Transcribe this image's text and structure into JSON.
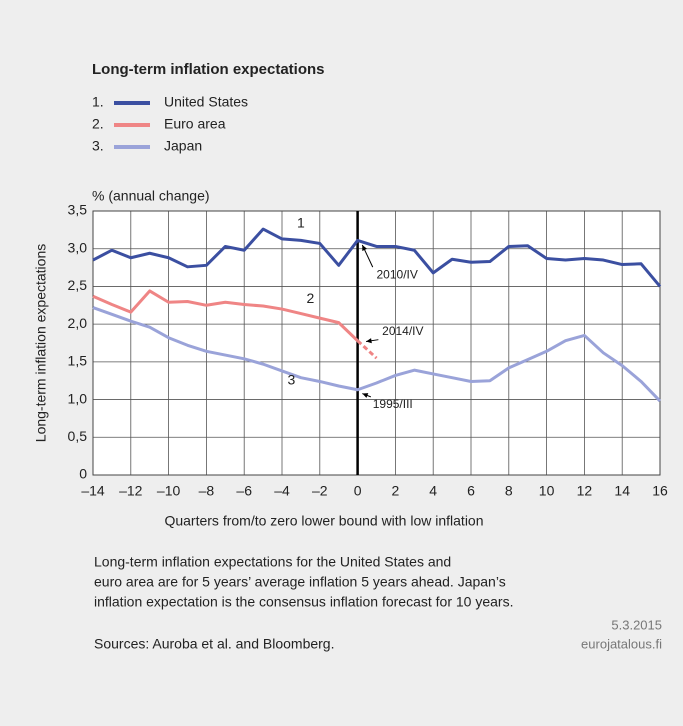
{
  "chart_data": {
    "type": "line",
    "title": "Long-term inflation expectations",
    "unit_label": "% (annual change)",
    "ylabel": "Long-term inflation expectations",
    "xlabel": "Quarters from/to zero lower bound with low inflation",
    "x": [
      -14,
      -13,
      -12,
      -11,
      -10,
      -9,
      -8,
      -7,
      -6,
      -5,
      -4,
      -3,
      -2,
      -1,
      0,
      1,
      2,
      3,
      4,
      5,
      6,
      7,
      8,
      9,
      10,
      11,
      12,
      13,
      14,
      15,
      16
    ],
    "series": [
      {
        "name": "United States",
        "number": "1.",
        "color": "#3b4fa1",
        "values": [
          2.85,
          2.98,
          2.88,
          2.94,
          2.88,
          2.76,
          2.78,
          3.03,
          2.98,
          3.26,
          3.13,
          3.11,
          3.07,
          2.78,
          3.11,
          3.03,
          3.03,
          2.98,
          2.68,
          2.86,
          2.82,
          2.83,
          3.03,
          3.04,
          2.87,
          2.85,
          2.87,
          2.85,
          2.79,
          2.8,
          2.5
        ]
      },
      {
        "name": "Euro area",
        "number": "2.",
        "color": "#ef8585",
        "dash_from_x": 0,
        "values": [
          2.37,
          2.26,
          2.16,
          2.44,
          2.29,
          2.3,
          2.25,
          2.29,
          2.26,
          2.24,
          2.2,
          2.14,
          2.08,
          2.02,
          1.78,
          1.55,
          null,
          null,
          null,
          null,
          null,
          null,
          null,
          null,
          null,
          null,
          null,
          null,
          null,
          null,
          null
        ]
      },
      {
        "name": "Japan",
        "number": "3.",
        "color": "#9aa3d9",
        "values": [
          2.22,
          2.13,
          2.04,
          1.96,
          1.82,
          1.72,
          1.64,
          1.59,
          1.54,
          1.47,
          1.38,
          1.29,
          1.24,
          1.18,
          1.13,
          1.22,
          1.32,
          1.39,
          1.34,
          1.29,
          1.24,
          1.25,
          1.42,
          1.53,
          1.64,
          1.78,
          1.85,
          1.62,
          1.45,
          1.24,
          0.98
        ]
      }
    ],
    "vline_x": 0,
    "annotations": [
      "1",
      "2",
      "3",
      "2010/IV",
      "2014/IV",
      "1995/III"
    ],
    "xlim": [
      -14,
      16
    ],
    "xticks": [
      {
        "value": -14,
        "label": "–14"
      },
      {
        "value": -12,
        "label": "–12"
      },
      {
        "value": -10,
        "label": "–10"
      },
      {
        "value": -8,
        "label": "–8"
      },
      {
        "value": -6,
        "label": "–6"
      },
      {
        "value": -4,
        "label": "–4"
      },
      {
        "value": -2,
        "label": "–2"
      },
      0,
      2,
      4,
      6,
      8,
      10,
      12,
      14,
      16
    ],
    "ylim": [
      0,
      3.5
    ],
    "yticks": [
      0,
      {
        "value": 0.5,
        "label": "0,5"
      },
      {
        "value": 1,
        "label": "1,0"
      },
      {
        "value": 1.5,
        "label": "1,5"
      },
      {
        "value": 2,
        "label": "2,0"
      },
      {
        "value": 2.5,
        "label": "2,5"
      },
      {
        "value": 3,
        "label": "3,0"
      },
      {
        "value": 3.5,
        "label": "3,5"
      }
    ],
    "grid": true,
    "notes": [
      "Long-term inflation expectations for the United States and",
      "euro area are for 5 years’ average inflation 5 years ahead. Japan’s",
      "inflation expectation is the consensus inflation forecast for 10 years."
    ],
    "source": "Sources: Auroba et al. and Bloomberg.",
    "date": "5.3.2015",
    "publisher": "eurojatalous.fi"
  }
}
